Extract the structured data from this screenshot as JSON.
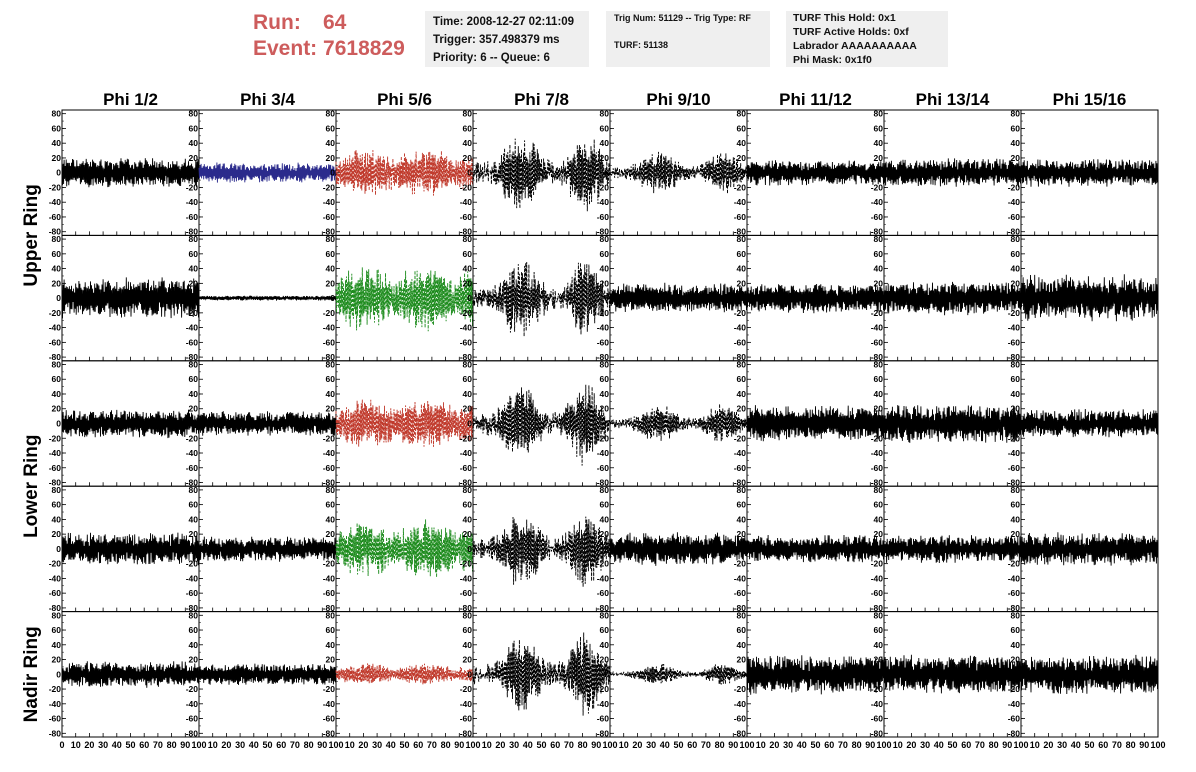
{
  "header": {
    "run_label": "Run:",
    "run_value": "64",
    "event_label": "Event:",
    "event_value": "7618829",
    "time_lines": [
      "Time: 2008-12-27 02:11:09",
      "Trigger: 357.498379 ms",
      "Priority: 6 -- Queue: 6"
    ],
    "trig_lines": [
      "Trig Num: 51129 -- Trig Type: RF",
      "TURF: 51138"
    ],
    "turf_lines": [
      "TURF This Hold: 0x1",
      "TURF Active Holds: 0xf",
      "Labrador AAAAAAAAAA",
      "Phi Mask: 0x1f0"
    ]
  },
  "colors": {
    "black": "#000000",
    "blue": "#2b2b8c",
    "red": "#c0392b",
    "green": "#1e8c1e"
  },
  "chart_data": {
    "type": "line",
    "columns": [
      "Phi 1/2",
      "Phi 3/4",
      "Phi 5/6",
      "Phi 7/8",
      "Phi 9/10",
      "Phi 11/12",
      "Phi 13/14",
      "Phi 15/16"
    ],
    "rows": [
      "Upper Ring",
      "Lower Ring",
      "Nadir Ring"
    ],
    "ylim": [
      -85,
      85
    ],
    "y_ticks": [
      "80",
      "60",
      "40",
      "20",
      "0",
      "-20",
      "-40",
      "-60",
      "-80"
    ],
    "y_tick_values": [
      80,
      60,
      40,
      20,
      0,
      -20,
      -40,
      -60,
      -80
    ],
    "xlim": [
      0,
      100
    ],
    "x_tick_labels": [
      "0",
      "10",
      "20",
      "30",
      "40",
      "50",
      "60",
      "70",
      "80",
      "90",
      "100"
    ],
    "x_tick_values": [
      0,
      10,
      20,
      30,
      40,
      50,
      60,
      70,
      80,
      90,
      100
    ],
    "panels": [
      [
        {
          "amp": 18,
          "style": "solid",
          "color": "black"
        },
        {
          "amp": 12,
          "style": "solid",
          "color": "blue"
        },
        {
          "amp": 30,
          "style": "dashed",
          "color": "red",
          "env": "burst"
        },
        {
          "amp": 45,
          "style": "dashed",
          "color": "black",
          "env": "double"
        },
        {
          "amp": 25,
          "style": "dashed",
          "color": "black",
          "env": "double"
        },
        {
          "amp": 15,
          "style": "solid",
          "color": "black"
        },
        {
          "amp": 17,
          "style": "solid",
          "color": "black"
        },
        {
          "amp": 17,
          "style": "solid",
          "color": "black"
        }
      ],
      [
        {
          "amp": 25,
          "style": "solid",
          "color": "black"
        },
        {
          "amp": 3,
          "style": "solid",
          "color": "black"
        },
        {
          "amp": 40,
          "style": "dashed",
          "color": "green",
          "env": "burst"
        },
        {
          "amp": 45,
          "style": "dashed",
          "color": "black",
          "env": "double"
        },
        {
          "amp": 18,
          "style": "solid",
          "color": "black"
        },
        {
          "amp": 18,
          "style": "solid",
          "color": "black"
        },
        {
          "amp": 20,
          "style": "solid",
          "color": "black"
        },
        {
          "amp": 28,
          "style": "solid",
          "color": "black"
        }
      ],
      [
        {
          "amp": 17,
          "style": "solid",
          "color": "black"
        },
        {
          "amp": 15,
          "style": "solid",
          "color": "black"
        },
        {
          "amp": 32,
          "style": "dashed",
          "color": "red",
          "env": "burst"
        },
        {
          "amp": 45,
          "style": "dashed",
          "color": "black",
          "env": "double"
        },
        {
          "amp": 22,
          "style": "dashed",
          "color": "black",
          "env": "double"
        },
        {
          "amp": 22,
          "style": "solid",
          "color": "black"
        },
        {
          "amp": 24,
          "style": "solid",
          "color": "black"
        },
        {
          "amp": 17,
          "style": "solid",
          "color": "black"
        }
      ],
      [
        {
          "amp": 20,
          "style": "solid",
          "color": "black"
        },
        {
          "amp": 15,
          "style": "solid",
          "color": "black"
        },
        {
          "amp": 35,
          "style": "dashed",
          "color": "green",
          "env": "burst"
        },
        {
          "amp": 45,
          "style": "dashed",
          "color": "black",
          "env": "double"
        },
        {
          "amp": 20,
          "style": "solid",
          "color": "black"
        },
        {
          "amp": 17,
          "style": "solid",
          "color": "black"
        },
        {
          "amp": 17,
          "style": "solid",
          "color": "black"
        },
        {
          "amp": 20,
          "style": "solid",
          "color": "black"
        }
      ],
      [
        {
          "amp": 16,
          "style": "solid",
          "color": "black"
        },
        {
          "amp": 13,
          "style": "solid",
          "color": "black"
        },
        {
          "amp": 13,
          "style": "dashed",
          "color": "red",
          "env": "burst"
        },
        {
          "amp": 45,
          "style": "dashed",
          "color": "black",
          "env": "double"
        },
        {
          "amp": 12,
          "style": "dashed",
          "color": "black",
          "env": "double"
        },
        {
          "amp": 24,
          "style": "solid",
          "color": "black"
        },
        {
          "amp": 24,
          "style": "solid",
          "color": "black"
        },
        {
          "amp": 24,
          "style": "solid",
          "color": "black"
        }
      ]
    ]
  }
}
